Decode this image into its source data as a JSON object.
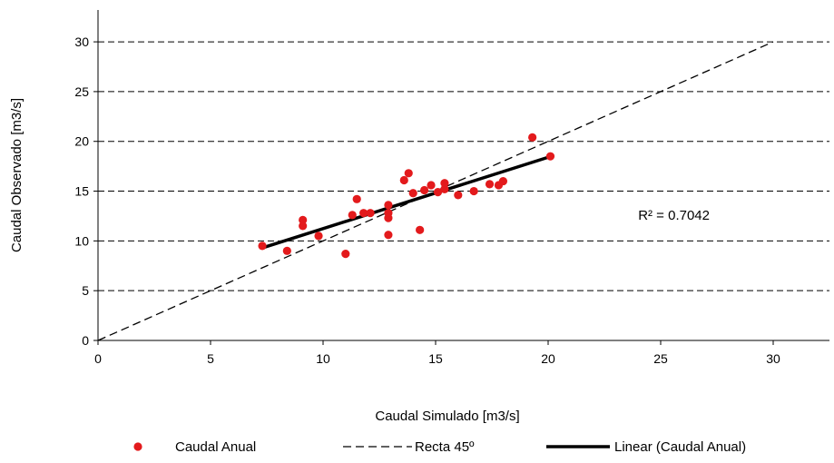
{
  "chart_data": {
    "type": "scatter",
    "title": "",
    "xlabel": "Caudal Simulado [m3/s]",
    "ylabel": "Caudal Observado [m3/s]",
    "xlim": [
      0,
      32.5
    ],
    "ylim": [
      0,
      33.2
    ],
    "xticks": [
      0,
      5,
      10,
      15,
      20,
      25,
      30
    ],
    "yticks": [
      0,
      5,
      10,
      15,
      20,
      25,
      30
    ],
    "xtick_labels": [
      "0",
      "5",
      "10",
      "15",
      "20",
      "25",
      "30"
    ],
    "ytick_labels": [
      "0",
      "5",
      "10",
      "15",
      "20",
      "25",
      "30"
    ],
    "grid": "horizontal dashed",
    "legend_position": "bottom",
    "series": [
      {
        "name": "Caudal Anual",
        "kind": "scatter",
        "color": "#e31a1c",
        "points": [
          {
            "x": 7.3,
            "y": 9.5
          },
          {
            "x": 8.4,
            "y": 9.0
          },
          {
            "x": 9.1,
            "y": 12.1
          },
          {
            "x": 9.1,
            "y": 11.5
          },
          {
            "x": 9.8,
            "y": 10.5
          },
          {
            "x": 11.0,
            "y": 8.7
          },
          {
            "x": 11.3,
            "y": 12.6
          },
          {
            "x": 11.5,
            "y": 14.2
          },
          {
            "x": 11.8,
            "y": 12.8
          },
          {
            "x": 12.1,
            "y": 12.8
          },
          {
            "x": 12.9,
            "y": 13.6
          },
          {
            "x": 12.9,
            "y": 12.8
          },
          {
            "x": 12.9,
            "y": 12.3
          },
          {
            "x": 12.9,
            "y": 10.6
          },
          {
            "x": 13.6,
            "y": 16.1
          },
          {
            "x": 13.8,
            "y": 16.8
          },
          {
            "x": 14.0,
            "y": 14.8
          },
          {
            "x": 14.3,
            "y": 11.1
          },
          {
            "x": 14.5,
            "y": 15.1
          },
          {
            "x": 14.8,
            "y": 15.6
          },
          {
            "x": 15.1,
            "y": 14.9
          },
          {
            "x": 15.4,
            "y": 15.8
          },
          {
            "x": 15.4,
            "y": 15.2
          },
          {
            "x": 16.0,
            "y": 14.6
          },
          {
            "x": 16.7,
            "y": 15.0
          },
          {
            "x": 17.4,
            "y": 15.7
          },
          {
            "x": 17.8,
            "y": 15.6
          },
          {
            "x": 18.0,
            "y": 16.0
          },
          {
            "x": 19.3,
            "y": 20.4
          },
          {
            "x": 20.1,
            "y": 18.5
          }
        ]
      },
      {
        "name": "Recta 45º",
        "kind": "line",
        "style": "dashed",
        "color": "#000000",
        "points": [
          {
            "x": 0,
            "y": 0
          },
          {
            "x": 30,
            "y": 30
          }
        ]
      },
      {
        "name": "Linear (Caudal Anual)",
        "kind": "line",
        "style": "solid",
        "color": "#000000",
        "points": [
          {
            "x": 7.3,
            "y": 9.3
          },
          {
            "x": 20.0,
            "y": 18.4
          }
        ]
      }
    ],
    "annotations": [
      {
        "text": "R² = 0.7042",
        "x": 24.0,
        "y": 12.6
      }
    ]
  }
}
